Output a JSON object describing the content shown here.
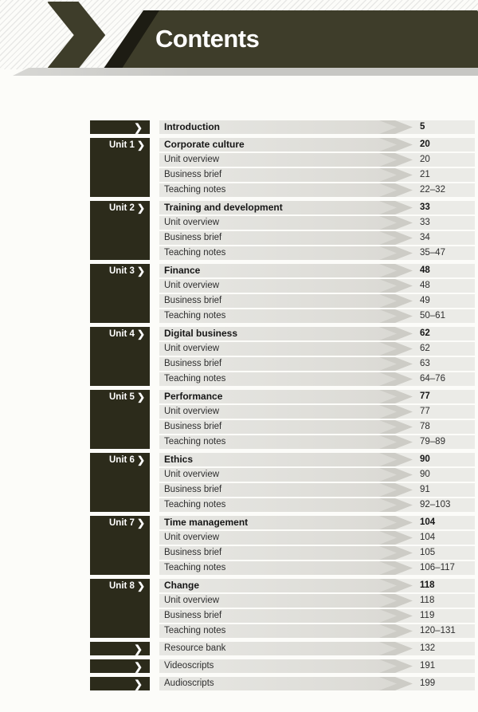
{
  "colors": {
    "band_olive": "#3e3d2a",
    "band_shadow": "#1d1c13",
    "block_dark": "#2c2b1b",
    "bar_gray": "#e3e3df",
    "arrow_tip": "#cdccc6",
    "row_tail": "#ebebe7",
    "strip_gray": "#c7c7c4",
    "page_bg": "#fcfcf9"
  },
  "icons": {
    "chevron": "❯"
  },
  "header": {
    "title": "Contents"
  },
  "toc": {
    "intro": {
      "label": "Introduction",
      "page": "5"
    },
    "units": [
      {
        "label": "Unit 1",
        "title": "Corporate culture",
        "page": "20",
        "rows": [
          {
            "label": "Unit overview",
            "page": "20"
          },
          {
            "label": "Business brief",
            "page": "21"
          },
          {
            "label": "Teaching notes",
            "page": "22–32"
          }
        ]
      },
      {
        "label": "Unit 2",
        "title": "Training and development",
        "page": "33",
        "rows": [
          {
            "label": "Unit overview",
            "page": "33"
          },
          {
            "label": "Business brief",
            "page": "34"
          },
          {
            "label": "Teaching notes",
            "page": "35–47"
          }
        ]
      },
      {
        "label": "Unit 3",
        "title": "Finance",
        "page": "48",
        "rows": [
          {
            "label": "Unit overview",
            "page": "48"
          },
          {
            "label": "Business brief",
            "page": "49"
          },
          {
            "label": "Teaching notes",
            "page": "50–61"
          }
        ]
      },
      {
        "label": "Unit 4",
        "title": "Digital business",
        "page": "62",
        "rows": [
          {
            "label": "Unit overview",
            "page": "62"
          },
          {
            "label": "Business brief",
            "page": "63"
          },
          {
            "label": "Teaching notes",
            "page": "64–76"
          }
        ]
      },
      {
        "label": "Unit 5",
        "title": "Performance",
        "page": "77",
        "rows": [
          {
            "label": "Unit overview",
            "page": "77"
          },
          {
            "label": "Business brief",
            "page": "78"
          },
          {
            "label": "Teaching notes",
            "page": "79–89"
          }
        ]
      },
      {
        "label": "Unit 6",
        "title": "Ethics",
        "page": "90",
        "rows": [
          {
            "label": "Unit overview",
            "page": "90"
          },
          {
            "label": "Business brief",
            "page": "91"
          },
          {
            "label": "Teaching notes",
            "page": "92–103"
          }
        ]
      },
      {
        "label": "Unit 7",
        "title": "Time management",
        "page": "104",
        "rows": [
          {
            "label": "Unit overview",
            "page": "104"
          },
          {
            "label": "Business brief",
            "page": "105"
          },
          {
            "label": "Teaching notes",
            "page": "106–117"
          }
        ]
      },
      {
        "label": "Unit 8",
        "title": "Change",
        "page": "118",
        "rows": [
          {
            "label": "Unit overview",
            "page": "118"
          },
          {
            "label": "Business brief",
            "page": "119"
          },
          {
            "label": "Teaching notes",
            "page": "120–131"
          }
        ]
      }
    ],
    "extras": [
      {
        "label": "Resource bank",
        "page": "132"
      },
      {
        "label": "Videoscripts",
        "page": "191"
      },
      {
        "label": "Audioscripts",
        "page": "199"
      }
    ]
  }
}
